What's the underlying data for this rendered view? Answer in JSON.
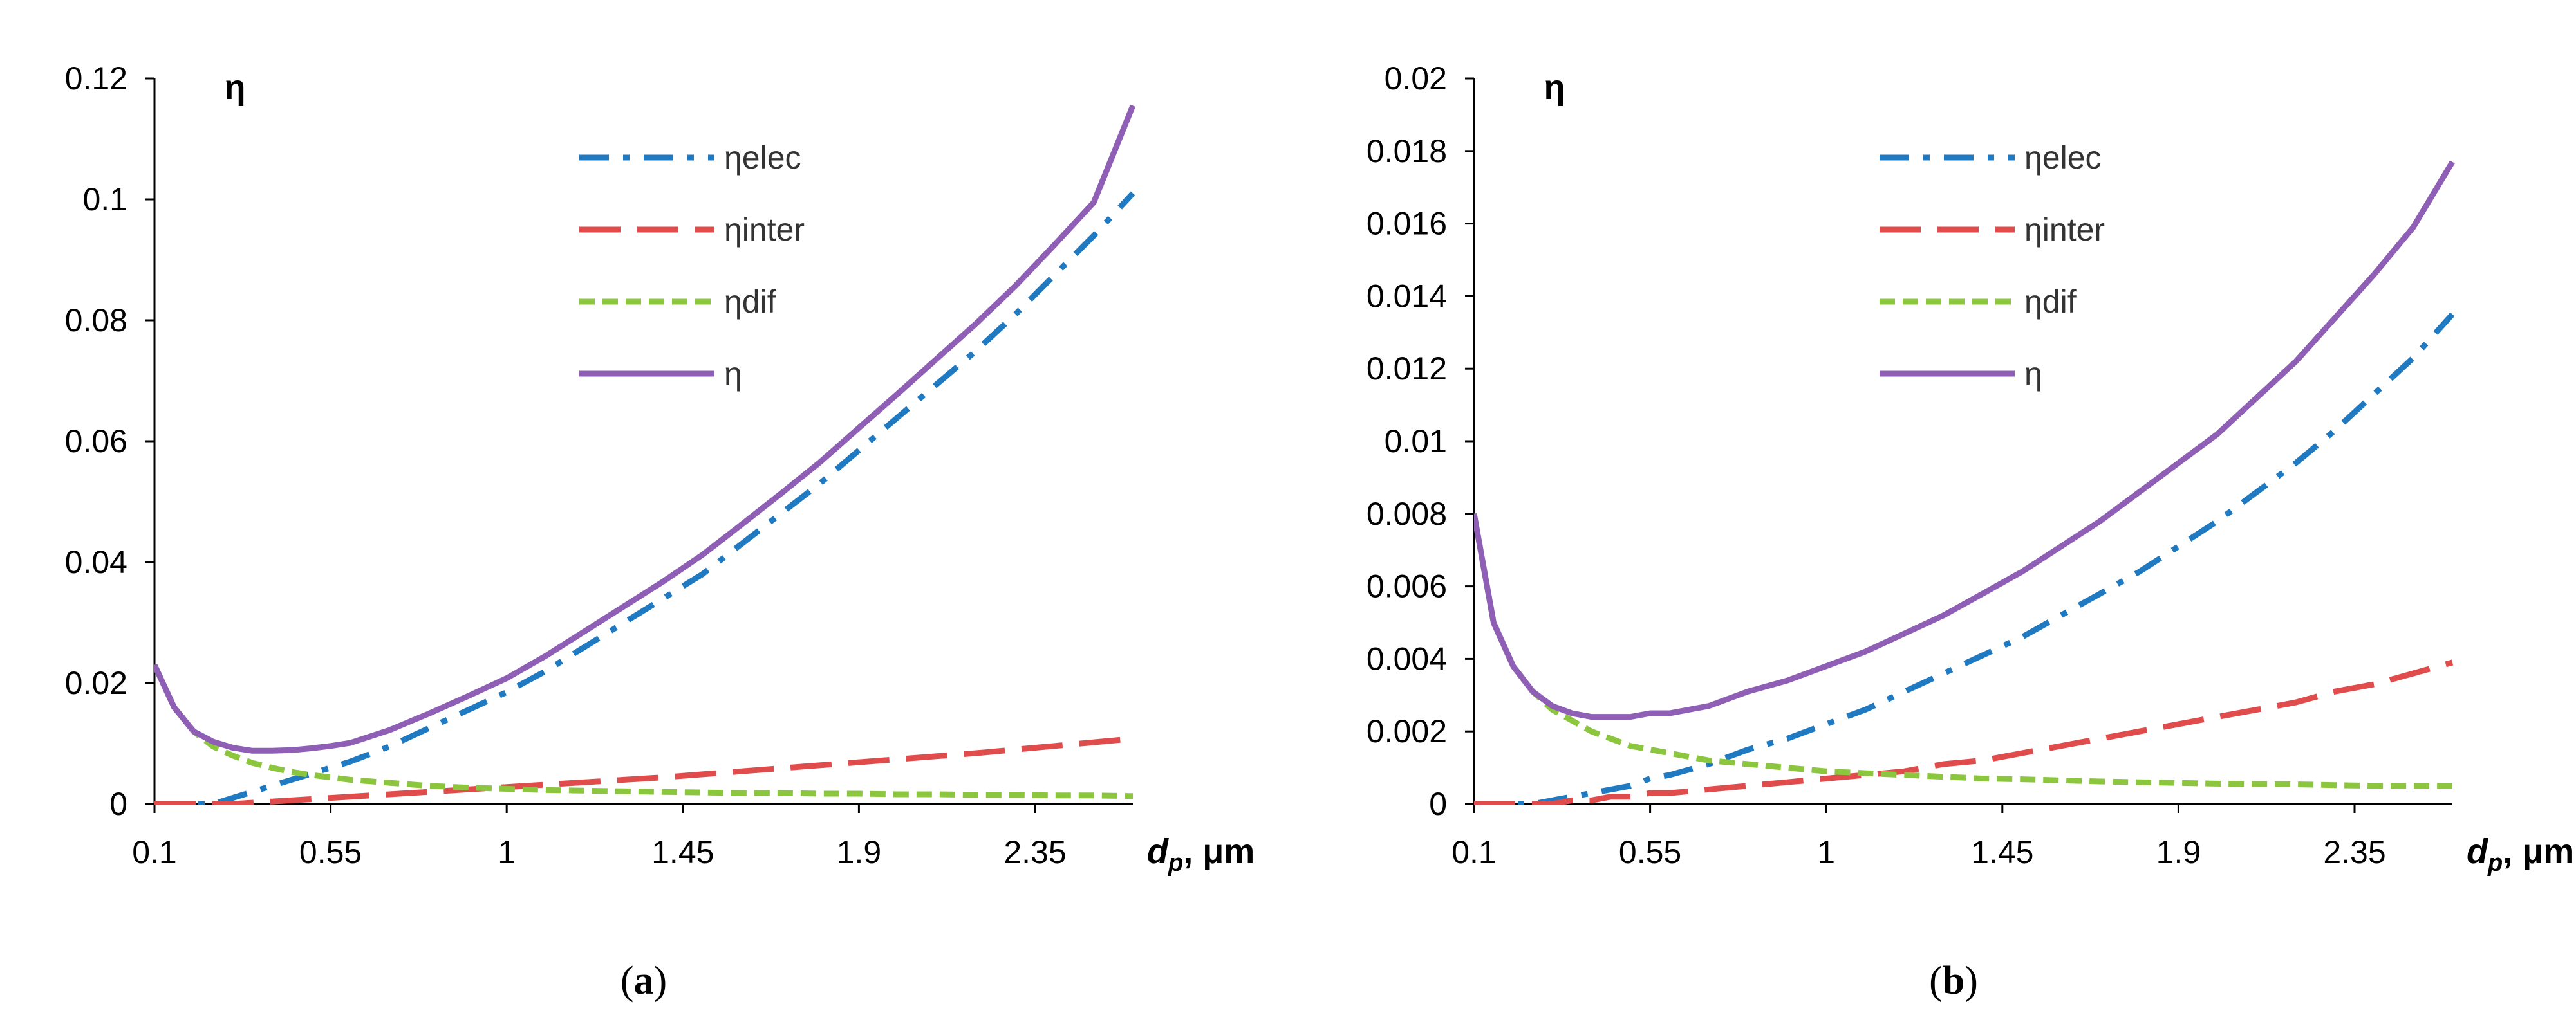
{
  "chart_data": [
    {
      "type": "line",
      "ylabel": "η",
      "xlabel": {
        "var": "d",
        "sub": "p",
        "unit": ", μm"
      },
      "caption": {
        "open": "(",
        "letter": "a",
        "close": ")"
      },
      "x_ticks": [
        "0.1",
        "0.55",
        "1",
        "1.45",
        "1.9",
        "2.35"
      ],
      "y_ticks": [
        "0",
        "0.02",
        "0.04",
        "0.06",
        "0.08",
        "0.1",
        "0.12"
      ],
      "xlim": [
        0.1,
        2.6
      ],
      "ylim": [
        0,
        0.12
      ],
      "x": [
        0.1,
        0.15,
        0.2,
        0.25,
        0.3,
        0.35,
        0.4,
        0.45,
        0.5,
        0.55,
        0.6,
        0.7,
        0.8,
        0.9,
        1.0,
        1.1,
        1.2,
        1.3,
        1.4,
        1.5,
        1.6,
        1.7,
        1.8,
        1.9,
        2.0,
        2.1,
        2.2,
        2.3,
        2.4,
        2.5,
        2.6
      ],
      "series": [
        {
          "name": "ηelec",
          "color": "#1f7ac2",
          "dash": "dashdot",
          "values": [
            0,
            0,
            0,
            0,
            0.001,
            0.002,
            0.003,
            0.004,
            0.005,
            0.006,
            0.007,
            0.0095,
            0.0125,
            0.0155,
            0.0185,
            0.022,
            0.026,
            0.03,
            0.034,
            0.038,
            0.043,
            0.048,
            0.053,
            0.0585,
            0.064,
            0.0695,
            0.075,
            0.081,
            0.0875,
            0.094,
            0.101
          ]
        },
        {
          "name": "ηinter",
          "color": "#e04b4b",
          "dash": "longdash",
          "values": [
            0,
            0,
            0,
            0,
            0,
            0.0002,
            0.0004,
            0.0006,
            0.0008,
            0.001,
            0.0012,
            0.0016,
            0.002,
            0.0024,
            0.0028,
            0.0032,
            0.0036,
            0.004,
            0.0044,
            0.0049,
            0.0054,
            0.0059,
            0.0064,
            0.0069,
            0.0074,
            0.0079,
            0.0084,
            0.009,
            0.0096,
            0.0102,
            0.0108
          ]
        },
        {
          "name": "ηdif",
          "color": "#8cc63f",
          "dash": "shortdash",
          "values": [
            0.023,
            0.016,
            0.012,
            0.0095,
            0.008,
            0.0068,
            0.006,
            0.0053,
            0.0048,
            0.0044,
            0.004,
            0.0035,
            0.003,
            0.0027,
            0.0025,
            0.0023,
            0.0022,
            0.0021,
            0.002,
            0.0019,
            0.0018,
            0.0018,
            0.0017,
            0.0017,
            0.0016,
            0.0016,
            0.0015,
            0.0015,
            0.0014,
            0.0014,
            0.0013
          ]
        },
        {
          "name": "η",
          "color": "#8e5fb5",
          "dash": "solid",
          "values": [
            0.023,
            0.016,
            0.012,
            0.0103,
            0.0093,
            0.0088,
            0.0088,
            0.0089,
            0.0092,
            0.0096,
            0.0101,
            0.0122,
            0.0149,
            0.0178,
            0.0208,
            0.0245,
            0.0286,
            0.0327,
            0.0368,
            0.0412,
            0.0462,
            0.0513,
            0.0565,
            0.0622,
            0.0679,
            0.0737,
            0.0795,
            0.0857,
            0.0925,
            0.0995,
            0.1155
          ]
        }
      ]
    },
    {
      "type": "line",
      "ylabel": "η",
      "xlabel": {
        "var": "d",
        "sub": "p",
        "unit": ", μm"
      },
      "caption": {
        "open": "(",
        "letter": "b",
        "close": ")"
      },
      "x_ticks": [
        "0.1",
        "0.55",
        "1",
        "1.45",
        "1.9",
        "2.35"
      ],
      "y_ticks": [
        "0",
        "0.002",
        "0.004",
        "0.006",
        "0.008",
        "0.01",
        "0.012",
        "0.014",
        "0.016",
        "0.018",
        "0.02"
      ],
      "xlim": [
        0.1,
        2.6
      ],
      "ylim": [
        0,
        0.02
      ],
      "x": [
        0.1,
        0.15,
        0.2,
        0.25,
        0.3,
        0.35,
        0.4,
        0.45,
        0.5,
        0.55,
        0.6,
        0.7,
        0.8,
        0.9,
        1.0,
        1.1,
        1.2,
        1.3,
        1.4,
        1.5,
        1.6,
        1.7,
        1.8,
        1.9,
        2.0,
        2.1,
        2.2,
        2.3,
        2.4,
        2.5,
        2.6
      ],
      "series": [
        {
          "name": "ηelec",
          "color": "#1f7ac2",
          "dash": "dashdot",
          "values": [
            0,
            0,
            0,
            0,
            0.0001,
            0.0002,
            0.0003,
            0.0004,
            0.0005,
            0.0007,
            0.0008,
            0.0011,
            0.0015,
            0.0018,
            0.0022,
            0.0026,
            0.0031,
            0.0036,
            0.0041,
            0.0046,
            0.0052,
            0.0058,
            0.0064,
            0.0071,
            0.0078,
            0.0086,
            0.0094,
            0.0103,
            0.0113,
            0.0123,
            0.0135
          ]
        },
        {
          "name": "ηinter",
          "color": "#e04b4b",
          "dash": "longdash",
          "values": [
            0,
            0,
            0,
            0,
            0,
            0.0001,
            0.0001,
            0.0002,
            0.0002,
            0.0003,
            0.0003,
            0.0004,
            0.0005,
            0.0006,
            0.0007,
            0.0008,
            0.0009,
            0.0011,
            0.0012,
            0.0014,
            0.0016,
            0.0018,
            0.002,
            0.0022,
            0.0024,
            0.0026,
            0.0028,
            0.0031,
            0.0033,
            0.0036,
            0.0039
          ]
        },
        {
          "name": "ηdif",
          "color": "#8cc63f",
          "dash": "shortdash",
          "values": [
            0.008,
            0.005,
            0.0038,
            0.0031,
            0.0026,
            0.0023,
            0.002,
            0.0018,
            0.0016,
            0.0015,
            0.0014,
            0.0012,
            0.0011,
            0.001,
            0.0009,
            0.00085,
            0.0008,
            0.00075,
            0.0007,
            0.00068,
            0.00065,
            0.00062,
            0.0006,
            0.00058,
            0.00056,
            0.00055,
            0.00054,
            0.00052,
            0.0005,
            0.0005,
            0.0005
          ]
        },
        {
          "name": "η",
          "color": "#8e5fb5",
          "dash": "solid",
          "values": [
            0.008,
            0.005,
            0.0038,
            0.0031,
            0.0027,
            0.0025,
            0.0024,
            0.0024,
            0.0024,
            0.0025,
            0.0025,
            0.0027,
            0.0031,
            0.0034,
            0.0038,
            0.0042,
            0.0047,
            0.0052,
            0.0058,
            0.0064,
            0.0071,
            0.0078,
            0.0086,
            0.0094,
            0.0102,
            0.0112,
            0.0122,
            0.0134,
            0.0146,
            0.0159,
            0.0177
          ]
        }
      ]
    }
  ]
}
